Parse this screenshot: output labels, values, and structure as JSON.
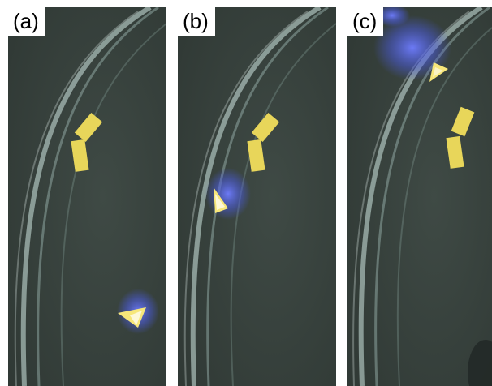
{
  "figure": {
    "panels": [
      {
        "label": "(a)"
      },
      {
        "label": "(b)"
      },
      {
        "label": "(c)"
      }
    ]
  },
  "colors": {
    "background": "#3a4440",
    "paper_square": "#e8d65a",
    "glow": "#5a6cff",
    "dish_rim": "#cfe7e2"
  }
}
